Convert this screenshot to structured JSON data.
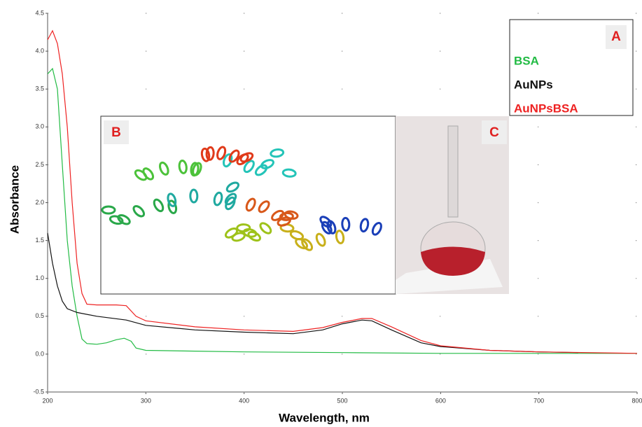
{
  "chart_data": {
    "type": "line",
    "x_label": "Wavelength, nm",
    "y_label": "Absorbance",
    "xlim": [
      200,
      800
    ],
    "xticks": [
      200,
      300,
      400,
      500,
      600,
      700,
      800
    ],
    "ylim": [
      -0.5,
      4.5
    ],
    "yticks": [
      -0.5,
      {
        "value": 0,
        "label": "0.0"
      },
      0.5,
      {
        "value": 1,
        "label": "1.0"
      },
      1.5,
      {
        "value": 2,
        "label": "2.0"
      },
      2.5,
      {
        "value": 3,
        "label": "3.0"
      },
      3.5,
      {
        "value": 4,
        "label": "4.0"
      },
      4.5
    ],
    "grid": true,
    "legend": "upper right",
    "legend_label": "A",
    "inset_labels": [
      "B",
      "C"
    ],
    "series": [
      {
        "name": "BSA",
        "color": "#22bb44",
        "x": [
          200,
          205,
          210,
          215,
          220,
          225,
          230,
          235,
          240,
          250,
          260,
          270,
          278,
          285,
          290,
          300,
          350,
          400,
          500,
          600,
          700,
          800
        ],
        "values": [
          3.7,
          3.77,
          3.5,
          2.5,
          1.5,
          0.9,
          0.5,
          0.2,
          0.14,
          0.13,
          0.15,
          0.19,
          0.21,
          0.17,
          0.08,
          0.05,
          0.04,
          0.03,
          0.02,
          0.01,
          0.01,
          0.01
        ]
      },
      {
        "name": "AuNPs",
        "color": "#111111",
        "x": [
          200,
          205,
          210,
          215,
          220,
          230,
          250,
          280,
          300,
          350,
          400,
          450,
          480,
          500,
          520,
          530,
          550,
          580,
          600,
          650,
          700,
          740
        ],
        "values": [
          1.6,
          1.2,
          0.9,
          0.7,
          0.6,
          0.55,
          0.5,
          0.45,
          0.38,
          0.32,
          0.29,
          0.27,
          0.32,
          0.4,
          0.45,
          0.44,
          0.32,
          0.15,
          0.1,
          0.05,
          0.03,
          0.02
        ]
      },
      {
        "name": "AuNPsBSA",
        "color": "#ee2222",
        "x": [
          200,
          205,
          210,
          215,
          220,
          225,
          230,
          235,
          240,
          250,
          270,
          280,
          290,
          300,
          350,
          400,
          450,
          480,
          500,
          520,
          530,
          550,
          580,
          600,
          650,
          700,
          800
        ],
        "values": [
          4.15,
          4.27,
          4.1,
          3.7,
          3.0,
          2.0,
          1.2,
          0.8,
          0.66,
          0.65,
          0.65,
          0.64,
          0.5,
          0.44,
          0.36,
          0.32,
          0.3,
          0.35,
          0.42,
          0.47,
          0.47,
          0.36,
          0.18,
          0.11,
          0.05,
          0.03,
          0.01
        ]
      }
    ]
  }
}
